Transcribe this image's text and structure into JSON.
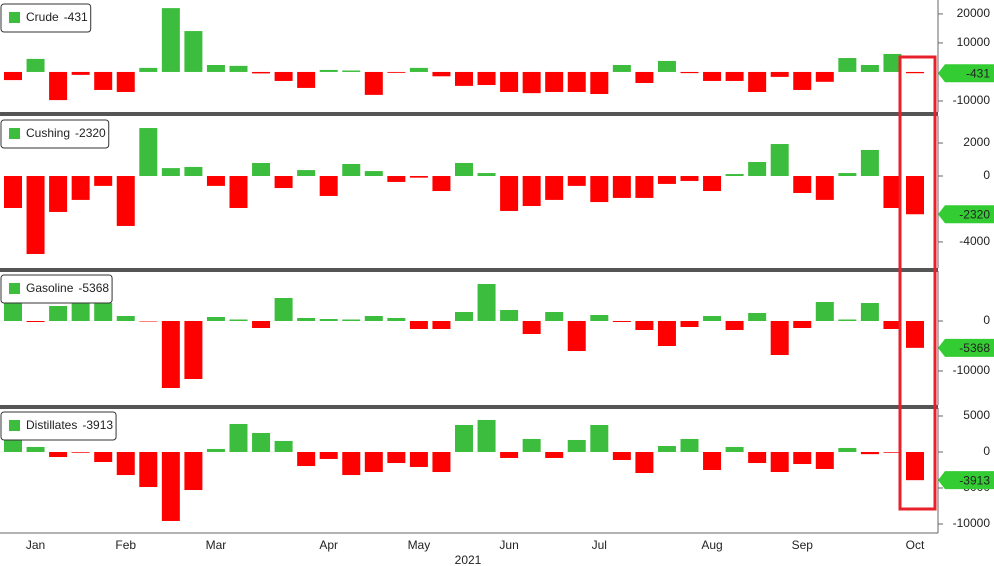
{
  "chart_data": [
    {
      "type": "bar",
      "series": [
        {
          "name": "Crude",
          "values": [
            -2800,
            4500,
            -9700,
            -1000,
            -6200,
            -6900,
            1400,
            22000,
            14100,
            2400,
            2100,
            -500,
            -3100,
            -5500,
            700,
            500,
            -7900,
            -300,
            1400,
            -1500,
            -4800,
            -4500,
            -6900,
            -7300,
            -6900,
            -6900,
            -7600,
            2400,
            -3800,
            3800,
            -400,
            -3100,
            -3100,
            -6900,
            -1700,
            -6200,
            -3400,
            4800,
            2400,
            6200,
            -431
          ]
        }
      ],
      "ylim": [
        -13800,
        24800
      ],
      "yticks": [
        -10000,
        10000,
        20000
      ],
      "positive_color": "#3dbd3d",
      "negative_color": "#ff0000"
    },
    {
      "type": "bar",
      "series": [
        {
          "name": "Cushing",
          "values": [
            -1940,
            -4730,
            -2180,
            -1450,
            -600,
            -3030,
            2910,
            480,
            550,
            -600,
            -1940,
            790,
            -730,
            360,
            -1210,
            730,
            300,
            -360,
            -100,
            -910,
            790,
            180,
            -2120,
            -1820,
            -1450,
            -600,
            -1580,
            -1330,
            -1330,
            -480,
            -300,
            -910,
            120,
            850,
            1940,
            -1030,
            -1450,
            180,
            1580,
            -1940,
            -2320
          ]
        }
      ],
      "ylim": [
        -5580,
        3640
      ],
      "yticks": [
        -4000,
        0,
        2000
      ],
      "positive_color": "#3dbd3d",
      "negative_color": "#ff0000"
    },
    {
      "type": "bar",
      "series": [
        {
          "name": "Gasoline",
          "values": [
            3600,
            -200,
            3000,
            3800,
            3600,
            1000,
            -100,
            -13400,
            -11600,
            800,
            300,
            -1400,
            4600,
            600,
            400,
            300,
            1000,
            600,
            -1600,
            -1600,
            1800,
            7400,
            2200,
            -2600,
            1800,
            -6000,
            1200,
            -200,
            -1800,
            -5000,
            -1200,
            1000,
            -1800,
            1600,
            -6800,
            -1400,
            3800,
            300,
            3600,
            -1600,
            -5368
          ]
        }
      ],
      "ylim": [
        -16800,
        10000
      ],
      "yticks": [
        -10000,
        0
      ],
      "positive_color": "#3dbd3d",
      "negative_color": "#ff0000"
    },
    {
      "type": "bar",
      "series": [
        {
          "name": "Distillates",
          "values": [
            1950,
            700,
            -700,
            -100,
            -1390,
            -3200,
            -4860,
            -9580,
            -5280,
            420,
            3890,
            2640,
            1530,
            -1950,
            -970,
            -3200,
            -2780,
            -1530,
            -2080,
            -2780,
            3750,
            4450,
            -830,
            1810,
            -830,
            1670,
            3750,
            -1110,
            -2920,
            830,
            1810,
            -2500,
            700,
            -1530,
            -2780,
            -1670,
            -2360,
            560,
            -300,
            -100,
            -3913
          ]
        }
      ],
      "ylim": [
        -11250,
        6110
      ],
      "yticks": [
        -10000,
        -5000,
        0,
        5000
      ],
      "positive_color": "#3dbd3d",
      "negative_color": "#ff0000",
      "categories": [
        null,
        "Jan",
        null,
        null,
        null,
        "Feb",
        null,
        null,
        null,
        "Mar",
        null,
        null,
        null,
        null,
        "Apr",
        null,
        null,
        null,
        "May",
        null,
        null,
        null,
        "Jun",
        null,
        null,
        null,
        "Jul",
        null,
        null,
        null,
        null,
        "Aug",
        null,
        null,
        null,
        "Sep",
        null,
        null,
        null,
        null,
        "Oct"
      ],
      "xlabel": "2021"
    }
  ]
}
